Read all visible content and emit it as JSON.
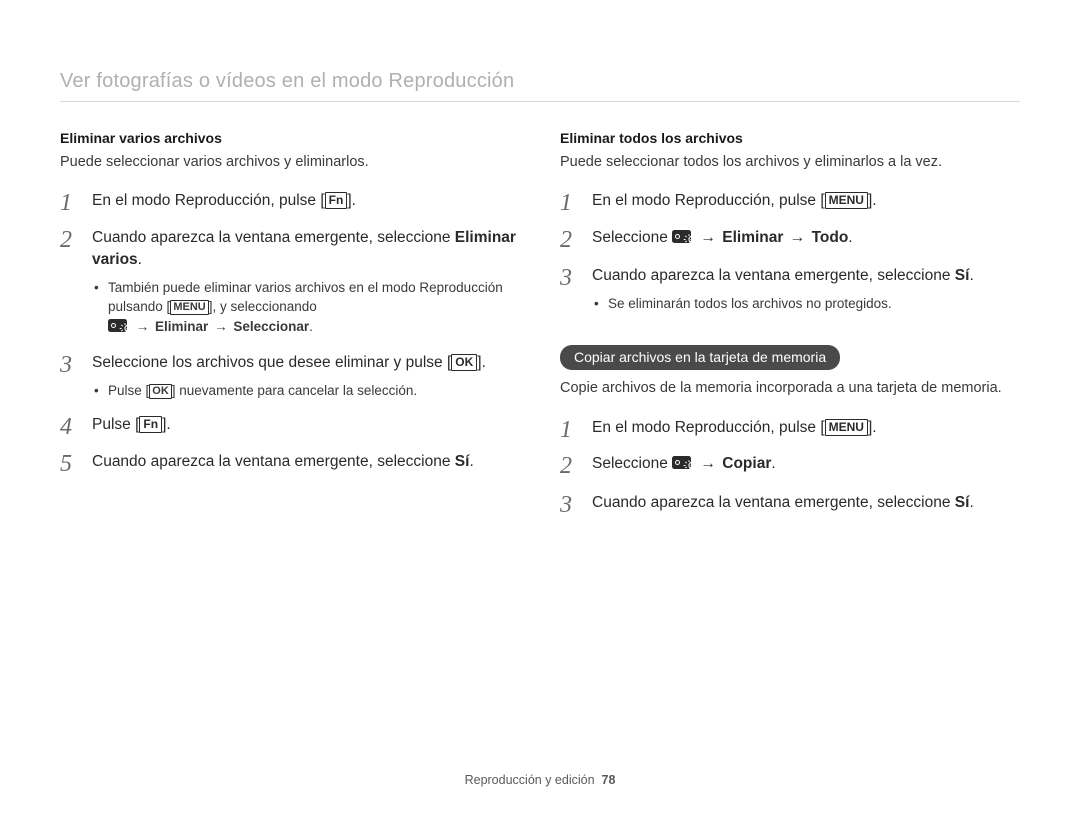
{
  "header": "Ver fotografías o vídeos en el modo Reproducción",
  "footer": {
    "section": "Reproducción y edición",
    "page": "78"
  },
  "arrow": "→",
  "btn": {
    "fn": "Fn",
    "menu": "MENU",
    "ok": "OK"
  },
  "colors": {
    "text": "#3a3a3a",
    "header_text": "#b0b0b0",
    "rule": "#d8d8d8",
    "pill_bg": "#4a4a4a",
    "pill_fg": "#ffffff",
    "step_num": "#6a6a6a",
    "icon_bg": "#2b2b2b",
    "icon_fg": "#ffffff"
  },
  "left": {
    "heading": "Eliminar varios archivos",
    "intro": "Puede seleccionar varios archivos y eliminarlos.",
    "steps": {
      "s1a": "En el modo Reproducción, pulse [",
      "s1b": "].",
      "s2a": "Cuando aparezca la ventana emergente, seleccione ",
      "s2b": "Eliminar varios",
      "s2c": ".",
      "s2_b1a": "También puede eliminar varios archivos en el modo Reproducción pulsando [",
      "s2_b1b": "], y seleccionando",
      "s2_b2b": "Eliminar",
      "s2_b2d": "Seleccionar",
      "s2_b2e": ".",
      "s3a": "Seleccione los archivos que desee eliminar y pulse [",
      "s3b": "].",
      "s3_b1a": "Pulse [",
      "s3_b1b": "] nuevamente para cancelar la selección.",
      "s4a": "Pulse [",
      "s4b": "].",
      "s5a": "Cuando aparezca la ventana emergente, seleccione ",
      "s5b": "Sí",
      "s5c": "."
    }
  },
  "right1": {
    "heading": "Eliminar todos los archivos",
    "intro": "Puede seleccionar todos los archivos y eliminarlos a la vez.",
    "steps": {
      "s1a": "En el modo Reproducción, pulse [",
      "s1b": "].",
      "s2a": "Seleccione ",
      "s2c": "Eliminar",
      "s2e": "Todo",
      "s2f": ".",
      "s3a": "Cuando aparezca la ventana emergente, seleccione ",
      "s3b": "Sí",
      "s3c": ".",
      "s3_b1": "Se eliminarán todos los archivos no protegidos."
    }
  },
  "right2": {
    "pill": "Copiar archivos en la tarjeta de memoria",
    "intro": "Copie archivos de la memoria incorporada a una tarjeta de memoria.",
    "steps": {
      "s1a": "En el modo Reproducción, pulse [",
      "s1b": "].",
      "s2a": "Seleccione ",
      "s2c": "Copiar",
      "s2d": ".",
      "s3a": "Cuando aparezca la ventana emergente, seleccione ",
      "s3b": "Sí",
      "s3c": "."
    }
  }
}
